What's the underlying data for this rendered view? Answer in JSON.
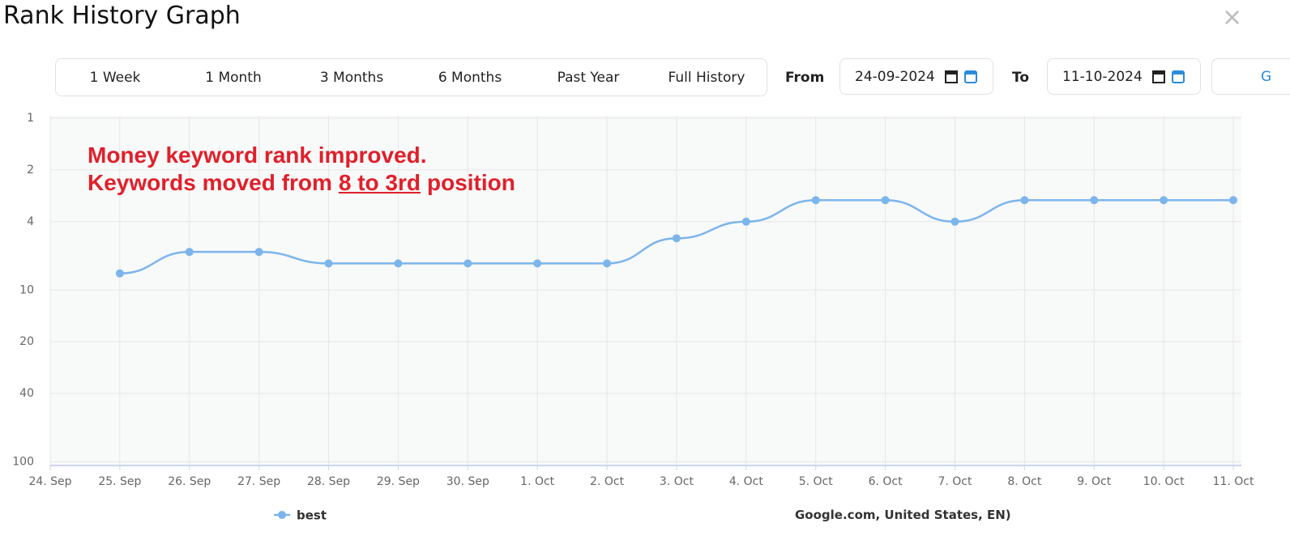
{
  "header": {
    "title": "Rank History Graph"
  },
  "controls": {
    "ranges": [
      "1 Week",
      "1 Month",
      "3 Months",
      "6 Months",
      "Past Year",
      "Full History"
    ],
    "from_label": "From",
    "from_date": "24-09-2024",
    "to_label": "To",
    "to_date": "11-10-2024",
    "go": "G"
  },
  "chart_data": {
    "type": "line",
    "annotations": [
      "Money keyword rank improved.",
      "Keywords moved from",
      "8 to 3rd",
      "position"
    ],
    "engine": "Google.com, United States, EN)",
    "categories": [
      "24. Sep",
      "25. Sep",
      "26. Sep",
      "27. Sep",
      "28. Sep",
      "29. Sep",
      "30. Sep",
      "1. Oct",
      "2. Oct",
      "3. Oct",
      "4. Oct",
      "5. Oct",
      "6. Oct",
      "7. Oct",
      "8. Oct",
      "9. Oct",
      "10. Oct",
      "11. Oct"
    ],
    "series": [
      {
        "name": "best",
        "color": "#7cb5ec",
        "values": [
          null,
          8,
          6,
          6,
          7,
          7,
          7,
          7,
          7,
          5,
          4,
          3,
          3,
          4,
          3,
          3,
          3,
          3
        ]
      }
    ],
    "ylim": [
      1,
      105
    ],
    "yticks": [
      1,
      2,
      4,
      10,
      20,
      40,
      100
    ],
    "y_log": true,
    "y_reversed": true,
    "grid": true
  }
}
